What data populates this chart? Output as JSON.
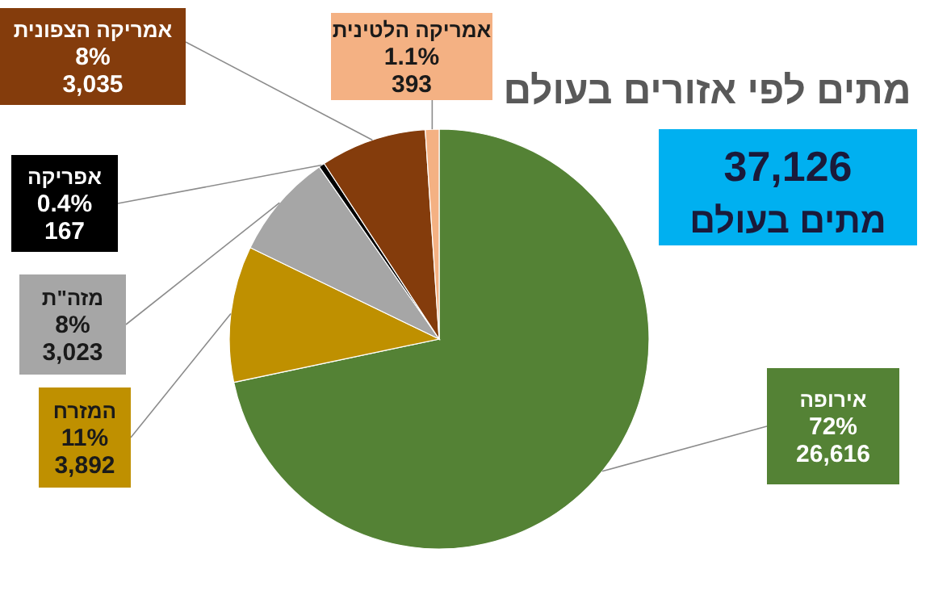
{
  "chart_data": {
    "type": "pie",
    "title": "מתים לפי אזורים בעולם",
    "categories": [
      "אירופה",
      "המזרח",
      "מזה\"ת",
      "אפריקה",
      "אמריקה הצפונית",
      "אמריקה הלטינית"
    ],
    "values": [
      26616,
      3892,
      3023,
      167,
      3035,
      393
    ],
    "colors": [
      "#548235",
      "#bf9000",
      "#a6a6a6",
      "#000000",
      "#843c0c",
      "#f4b183"
    ],
    "value_labels": [
      "72%\n26,616",
      "11%\n3,892",
      "8%\n3,023",
      "0.4%\n167",
      "8%\n3,035",
      "1.1%\n393"
    ],
    "annotations": [
      "37,126",
      "מתים בעולם"
    ]
  }
}
